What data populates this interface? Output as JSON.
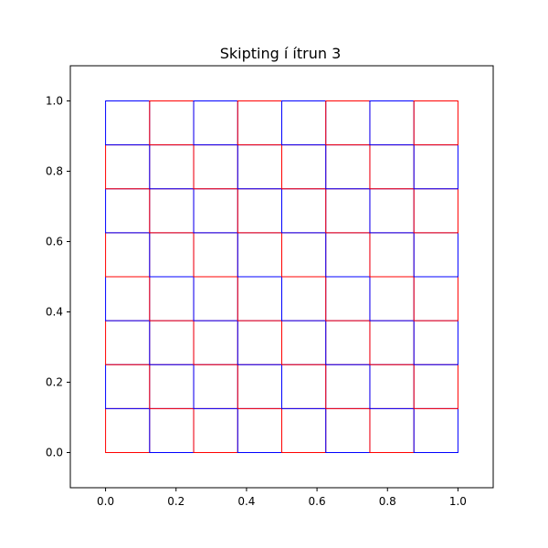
{
  "chart_data": {
    "type": "grid-partition",
    "title": "Skipting í ítrun 3",
    "xlabel": "",
    "ylabel": "",
    "xlim": [
      -0.1,
      1.1
    ],
    "ylim": [
      -0.1,
      1.1
    ],
    "xticks": [
      0.0,
      0.2,
      0.4,
      0.6,
      0.8,
      1.0
    ],
    "yticks": [
      0.0,
      0.2,
      0.4,
      0.6,
      0.8,
      1.0
    ],
    "xtick_labels": [
      "0.0",
      "0.2",
      "0.4",
      "0.6",
      "0.8",
      "1.0"
    ],
    "ytick_labels": [
      "0.0",
      "0.2",
      "0.4",
      "0.6",
      "0.8",
      "1.0"
    ],
    "grid": false,
    "iteration": 3,
    "divisions": 8,
    "cell_size": 0.125,
    "colors": {
      "even": "#ff0000",
      "odd": "#0000ff"
    }
  }
}
